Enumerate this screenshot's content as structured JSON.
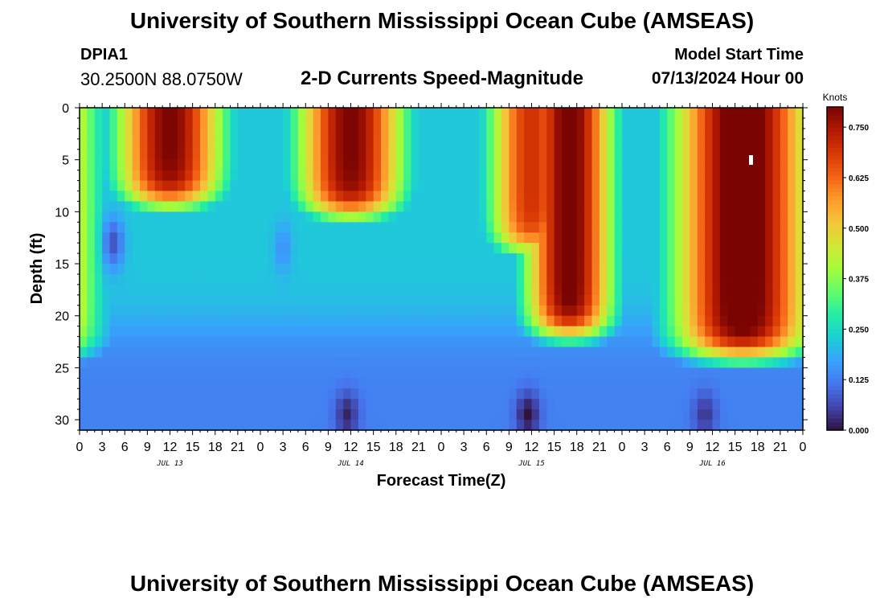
{
  "header": {
    "title": "University of Southern Mississippi Ocean Cube (AMSEAS)",
    "station_id": "DPIA1",
    "station_coords": "30.2500N  88.0750W",
    "subtitle": "2-D Currents Speed-Magnitude",
    "model_start_label": "Model Start Time",
    "model_start_value": "07/13/2024 Hour 00"
  },
  "footer": {
    "title": "University of Southern Mississippi Ocean Cube (AMSEAS)"
  },
  "colors": {
    "colormap": [
      "#30123b",
      "#4145ab",
      "#4675ed",
      "#39a2fc",
      "#1bcfd4",
      "#24eca6",
      "#61fc6c",
      "#a4fc3b",
      "#d1e834",
      "#f3c63a",
      "#fe9b2d",
      "#f36315",
      "#d93806",
      "#b11901",
      "#7a0402"
    ]
  },
  "chart_data": {
    "type": "heatmap",
    "title": "2-D Currents Speed-Magnitude",
    "xlabel": "Forecast Time(Z)",
    "ylabel": "Depth (ft)",
    "x_unit": "hours since 07/13/2024 00Z",
    "x_range": [
      0,
      96
    ],
    "y_range": [
      0,
      31
    ],
    "y_inverted": true,
    "x_ticks": [
      0,
      3,
      6,
      9,
      12,
      15,
      18,
      21,
      24,
      27,
      30,
      33,
      36,
      39,
      42,
      45,
      48,
      51,
      54,
      57,
      60,
      63,
      66,
      69,
      72,
      75,
      78,
      81,
      84,
      87,
      90,
      93,
      96
    ],
    "x_tick_labels": [
      "0",
      "3",
      "6",
      "9",
      "12",
      "15",
      "18",
      "21",
      "0",
      "3",
      "6",
      "9",
      "12",
      "15",
      "18",
      "21",
      "0",
      "3",
      "6",
      "9",
      "12",
      "15",
      "18",
      "21",
      "0",
      "3",
      "6",
      "9",
      "12",
      "15",
      "18",
      "21",
      "0"
    ],
    "date_labels": [
      {
        "text": "JUL 13",
        "hour": 12
      },
      {
        "text": "JUL 14",
        "hour": 36
      },
      {
        "text": "JUL 15",
        "hour": 60
      },
      {
        "text": "JUL 16",
        "hour": 84
      }
    ],
    "y_ticks": [
      0,
      5,
      10,
      15,
      20,
      25,
      30
    ],
    "y_tick_labels": [
      "0",
      "5",
      "10",
      "15",
      "20",
      "25",
      "30"
    ],
    "colorbar": {
      "unit": "Knots",
      "min": 0.0,
      "max": 0.8,
      "ticks": [
        0.0,
        0.125,
        0.25,
        0.375,
        0.5,
        0.625,
        0.75
      ],
      "tick_labels": [
        "0.000",
        "0.125",
        "0.250",
        "0.375",
        "0.500",
        "0.625",
        "0.750"
      ]
    },
    "surface_pulses": [
      {
        "center_hour": 12.0,
        "width_hours": 5.5,
        "amplitude": 0.8,
        "depth_ft": 9.5
      },
      {
        "center_hour": 36.0,
        "width_hours": 5.5,
        "amplitude": 0.8,
        "depth_ft": 10.5
      },
      {
        "center_hour": 60.0,
        "width_hours": 4.5,
        "amplitude": 0.7,
        "depth_ft": 14.0
      },
      {
        "center_hour": 65.0,
        "width_hours": 4.5,
        "amplitude": 0.82,
        "depth_ft": 22.0
      },
      {
        "center_hour": 88.0,
        "width_hours": 7.0,
        "amplitude": 0.85,
        "depth_ft": 24.0
      }
    ],
    "mid_band": {
      "depth_ft": 17.0,
      "value": 0.22
    },
    "deep_value": 0.13,
    "deep_minima": [
      {
        "hour": 35.5,
        "depth_ft": 29.5,
        "value": 0.02
      },
      {
        "hour": 59.5,
        "depth_ft": 29.5,
        "value": 0.0
      },
      {
        "hour": 83.0,
        "depth_ft": 29.5,
        "value": 0.04
      }
    ]
  }
}
